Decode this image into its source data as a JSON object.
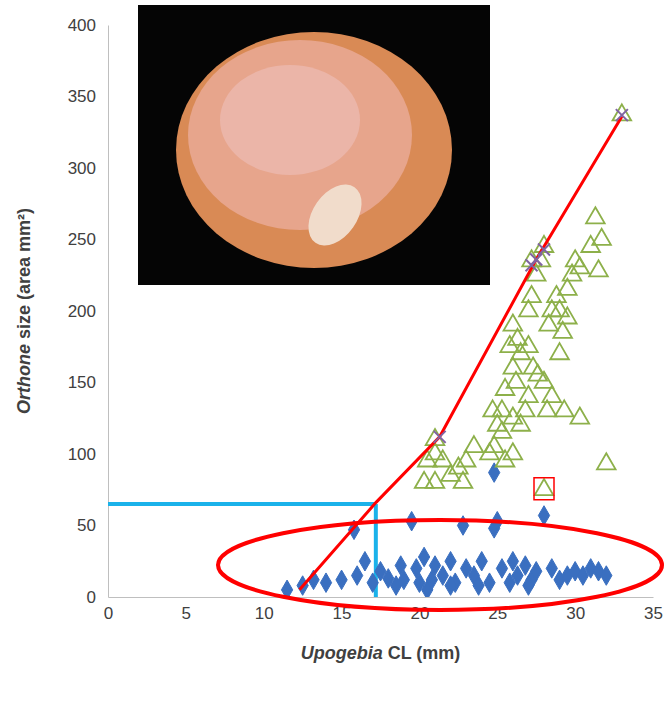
{
  "chart_data": {
    "type": "scatter",
    "x_label": "Upogebia CL (mm)",
    "y_label": "Orthone size (area mm²)",
    "xlim": [
      0,
      35
    ],
    "xticks": [
      0,
      5,
      10,
      15,
      20,
      25,
      30,
      35
    ],
    "ylim": [
      0,
      400
    ],
    "yticks": [
      0,
      50,
      100,
      150,
      200,
      250,
      300,
      350,
      400
    ],
    "grid": false,
    "threshold": {
      "x": 17.2,
      "y": 65
    },
    "highlight_point": {
      "x": 28,
      "y": 75
    },
    "series": [
      {
        "type": "scatter",
        "marker": "diamond",
        "color": "#3a6fc0",
        "x": [
          11.5,
          12.5,
          13.2,
          14,
          15,
          15.8,
          16,
          16.5,
          17,
          17.5,
          18,
          18.5,
          19,
          19.5,
          19.8,
          20,
          20.3,
          20.5,
          21,
          21.5,
          22,
          22.3,
          22.8,
          23,
          23.5,
          24,
          24.5,
          24.8,
          25,
          24.8,
          25.3,
          25.8,
          26.3,
          26.8,
          27.2,
          27.5,
          28,
          28.5,
          29,
          29.5,
          30,
          30.5,
          31,
          31.5,
          32,
          18.8,
          20.8,
          22,
          23.8,
          26,
          27
        ],
        "values": [
          5,
          8,
          12,
          10,
          12,
          47,
          15,
          25,
          10,
          18,
          13,
          8,
          12,
          53,
          20,
          10,
          28,
          5,
          22,
          15,
          25,
          10,
          50,
          20,
          15,
          25,
          10,
          48,
          53,
          87,
          20,
          10,
          15,
          22,
          12,
          18,
          57,
          20,
          12,
          15,
          18,
          15,
          20,
          18,
          15,
          22,
          12,
          8,
          8,
          25,
          8
        ]
      },
      {
        "type": "scatter",
        "marker": "triangle",
        "color": "#8db04a",
        "x": [
          21,
          20.3,
          21,
          21.5,
          22,
          22.5,
          23,
          23.5,
          21,
          20.5,
          22.8,
          24.7,
          25,
          24.8,
          25.3,
          25.5,
          26,
          25.8,
          26.2,
          26.5,
          26,
          26.3,
          27,
          27.2,
          27.5,
          27.8,
          28,
          27,
          27.3,
          27,
          26.8,
          26.5,
          27.6,
          28,
          28.3,
          28.5,
          28.8,
          29,
          29.2,
          29.5,
          29.8,
          30,
          30.3,
          29.5,
          29,
          28.5,
          28.2,
          29.3,
          30.3,
          31,
          31.3,
          31.5,
          31.7,
          32,
          25.5,
          26,
          24.5,
          33,
          27.2,
          28,
          26,
          25.3
        ],
        "values": [
          110,
          80,
          80,
          95,
          85,
          90,
          95,
          105,
          100,
          95,
          80,
          130,
          120,
          105,
          130,
          145,
          160,
          175,
          150,
          170,
          190,
          180,
          200,
          210,
          225,
          235,
          245,
          175,
          160,
          140,
          130,
          120,
          155,
          150,
          190,
          200,
          210,
          200,
          185,
          195,
          225,
          235,
          230,
          215,
          170,
          140,
          130,
          130,
          125,
          245,
          265,
          228,
          250,
          93,
          95,
          100,
          100,
          337,
          235,
          75,
          125,
          115
        ]
      },
      {
        "type": "line",
        "color": "#ff0000",
        "x": [
          12.3,
          17.2,
          21.3,
          27.5,
          33
        ],
        "values": [
          5,
          66,
          112,
          236,
          336
        ]
      },
      {
        "type": "scatter",
        "marker": "x",
        "color": "#8064a2",
        "x": [
          21.3,
          27.2,
          27.5,
          28,
          33
        ],
        "values": [
          112,
          232,
          236,
          243,
          337
        ]
      }
    ]
  }
}
